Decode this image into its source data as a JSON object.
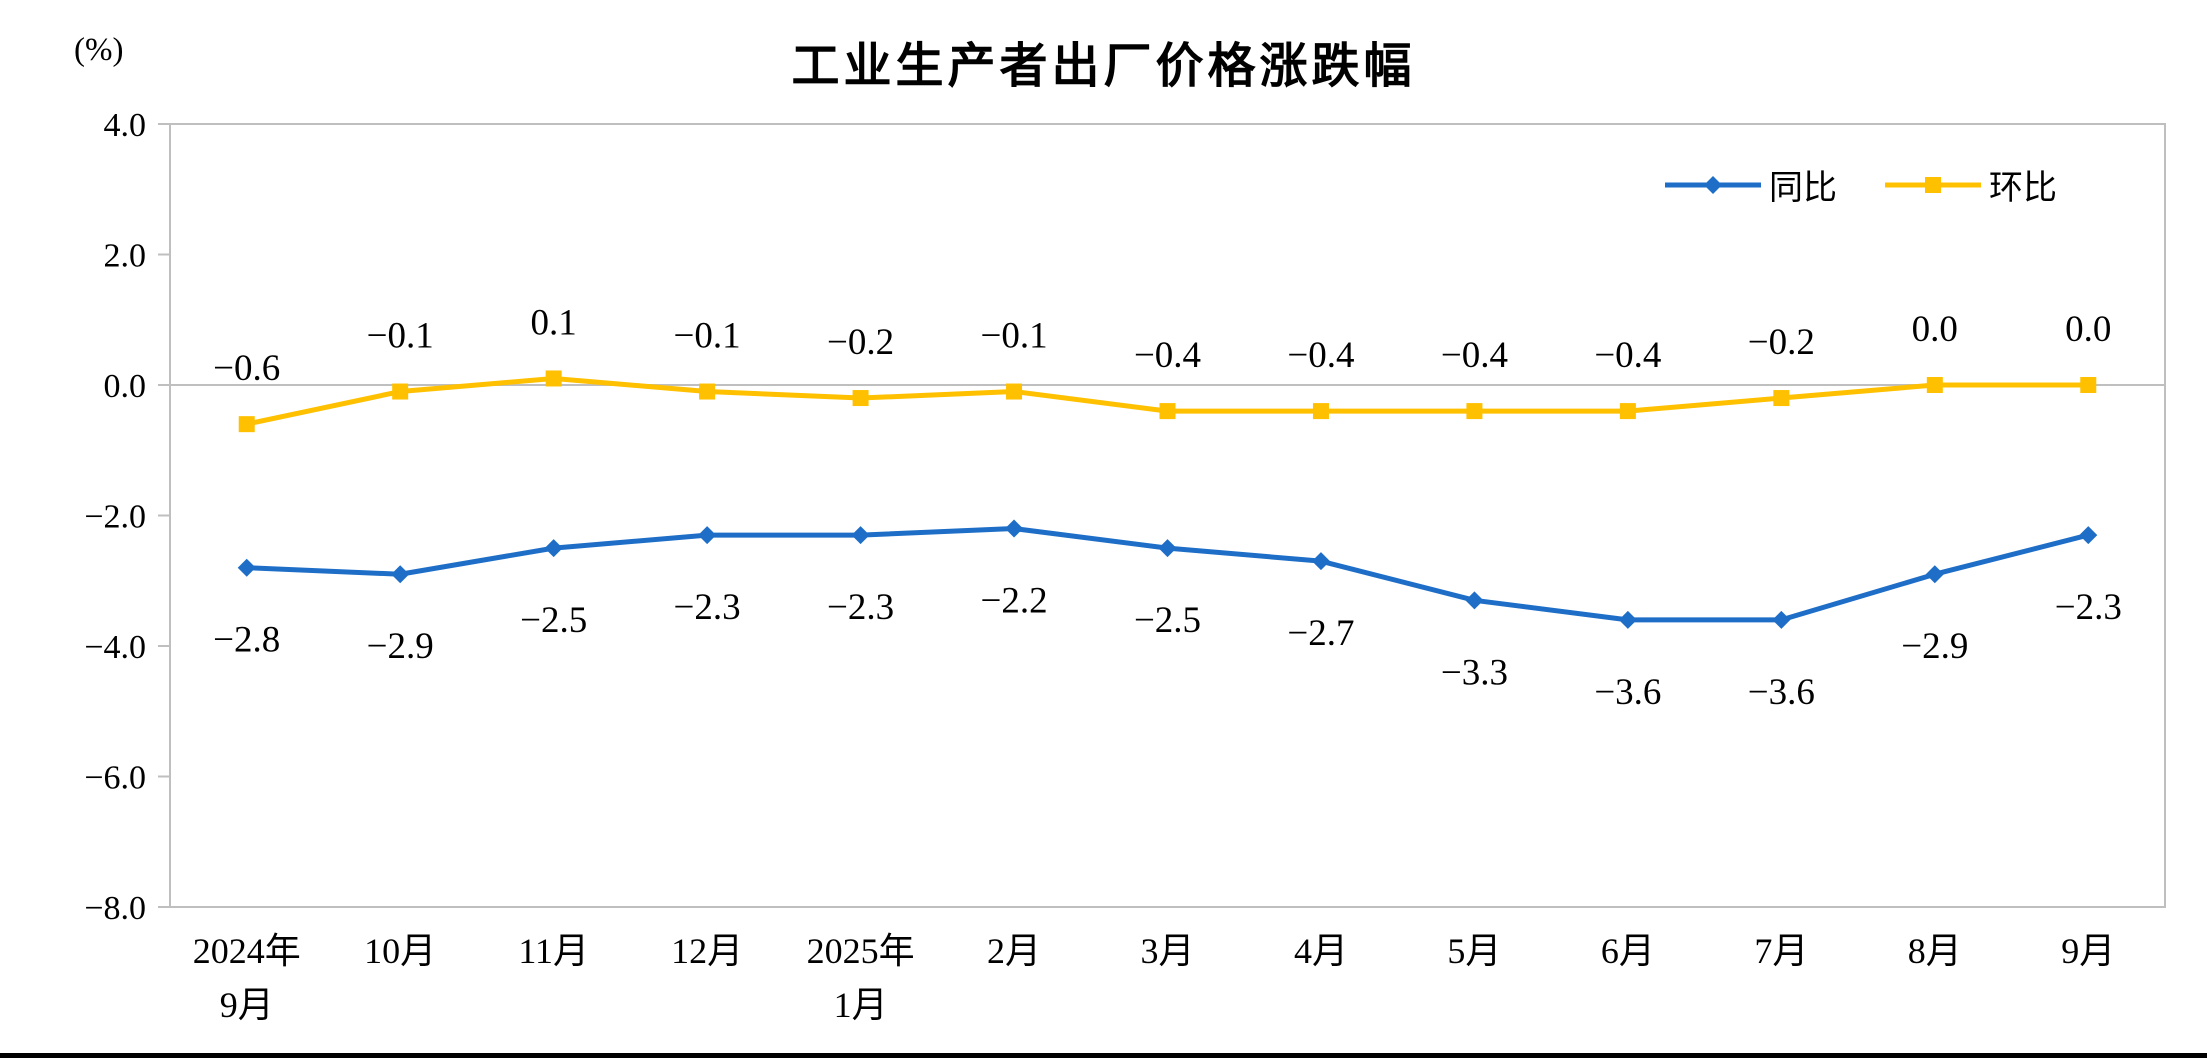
{
  "chart_data": {
    "type": "line",
    "title": "工业生产者出厂价格涨跌幅",
    "unit_label": "(%)",
    "categories": [
      "2024年\n9月",
      "10月",
      "11月",
      "12月",
      "2025年\n1月",
      "2月",
      "3月",
      "4月",
      "5月",
      "6月",
      "7月",
      "8月",
      "9月"
    ],
    "series": [
      {
        "name": "同比",
        "color": "#1E6EC8",
        "marker": "diamond",
        "label_position": "below",
        "values": [
          -2.8,
          -2.9,
          -2.5,
          -2.3,
          -2.3,
          -2.2,
          -2.5,
          -2.7,
          -3.3,
          -3.6,
          -3.6,
          -2.9,
          -2.3
        ]
      },
      {
        "name": "环比",
        "color": "#FFC000",
        "marker": "square",
        "label_position": "above",
        "values": [
          -0.6,
          -0.1,
          0.1,
          -0.1,
          -0.2,
          -0.1,
          -0.4,
          -0.4,
          -0.4,
          -0.4,
          -0.2,
          0.0,
          0.0
        ]
      }
    ],
    "ylim": [
      -8.0,
      4.0
    ],
    "yticks": [
      4.0,
      2.0,
      0.0,
      -2.0,
      -4.0,
      -6.0,
      -8.0
    ],
    "grid": false,
    "legend_position": "top-right",
    "axis_color": "#BFBFBF",
    "text_color": "#000000"
  }
}
